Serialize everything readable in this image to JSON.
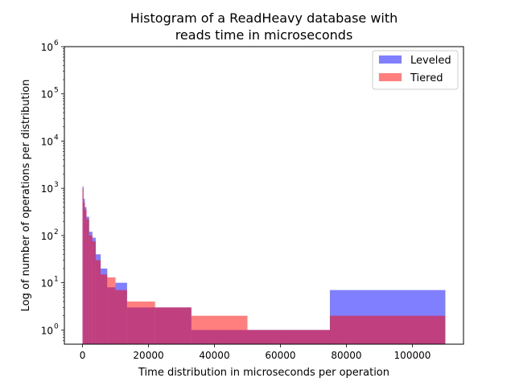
{
  "chart_data": {
    "type": "bar",
    "title_lines": [
      "Histogram of a ReadHeavy database with",
      "reads time in microseconds"
    ],
    "xlabel": "Time distribution in microseconds per operation",
    "ylabel": "Log of number of operations per distribution",
    "xlim": [
      -5500,
      115500
    ],
    "ylim": [
      0.5,
      1000000
    ],
    "yscale": "log",
    "xticks": [
      0,
      20000,
      40000,
      60000,
      80000,
      100000
    ],
    "xtick_labels": [
      "0",
      "20000",
      "40000",
      "60000",
      "80000",
      "100000"
    ],
    "yticks": [
      1,
      10,
      100,
      1000,
      10000,
      100000,
      1000000
    ],
    "ytick_labels": [
      "10",
      "10",
      "10",
      "10",
      "10",
      "10",
      "10"
    ],
    "ytick_exponents": [
      "0",
      "1",
      "2",
      "3",
      "4",
      "5",
      "6"
    ],
    "grid": false,
    "legend_position": "top-right",
    "series": [
      {
        "name": "Leveled",
        "color": "#0000ff",
        "alpha": 0.5,
        "bin_edges": [
          0,
          300,
          700,
          1200,
          2000,
          3000,
          4000,
          5500,
          7500,
          10000,
          13500,
          22000,
          33000,
          75000,
          110000
        ],
        "counts": [
          1100,
          600,
          400,
          250,
          120,
          90,
          40,
          20,
          8,
          10,
          3,
          3,
          1,
          7
        ]
      },
      {
        "name": "Tiered",
        "color": "#ff0000",
        "alpha": 0.5,
        "bin_edges": [
          0,
          300,
          700,
          1200,
          2000,
          3000,
          4000,
          5500,
          7500,
          10000,
          13500,
          22000,
          33000,
          50000,
          75000,
          110000
        ],
        "counts": [
          1000,
          500,
          350,
          220,
          100,
          75,
          30,
          15,
          13,
          7,
          4,
          3,
          2,
          1,
          2
        ]
      }
    ]
  }
}
